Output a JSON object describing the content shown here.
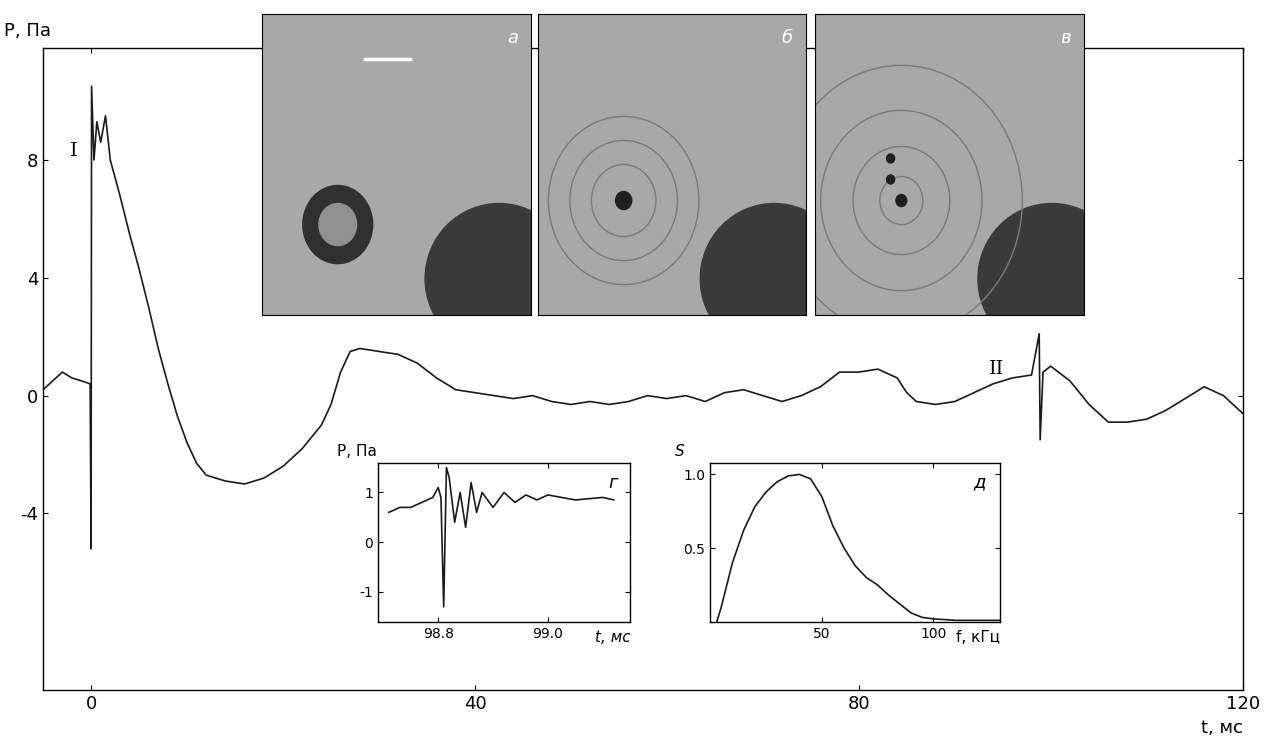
{
  "chart_data": [
    {
      "type": "line",
      "x_label": "t, мс",
      "y_label": "P, Па",
      "color": "#1a1a1a",
      "xlim": [
        -5,
        120
      ],
      "ylim": [
        -10,
        11.8
      ],
      "xticks": [
        0,
        40,
        80,
        120
      ],
      "yticks": [
        -4,
        0,
        4,
        8
      ],
      "annotations": [
        {
          "text": "I",
          "x": -1.8,
          "y": 8.3
        },
        {
          "text": "II",
          "x": 94.4,
          "y": 0.9
        }
      ],
      "panels": [
        "а",
        "б",
        "в"
      ],
      "x": [
        -5,
        -4,
        -3,
        -2,
        -1,
        -0.1,
        0,
        0.05,
        0.3,
        0.6,
        1,
        1.5,
        2,
        3,
        4,
        5,
        6,
        7,
        8,
        9,
        10,
        11,
        12,
        14,
        16,
        18,
        20,
        22,
        24,
        25,
        26,
        27,
        28,
        30,
        32,
        34,
        36,
        38,
        40,
        42,
        44,
        46,
        48,
        50,
        52,
        54,
        56,
        58,
        60,
        62,
        64,
        66,
        68,
        70,
        72,
        74,
        76,
        78,
        80,
        82,
        84,
        85,
        86,
        88,
        90,
        92,
        94,
        96,
        98,
        98.8,
        98.9,
        99.2,
        100,
        102,
        104,
        106,
        108,
        110,
        112,
        114,
        116,
        118,
        120
      ],
      "values": [
        0.2,
        0.5,
        0.8,
        0.6,
        0.5,
        0.4,
        -5.2,
        10.5,
        8.0,
        9.3,
        8.6,
        9.5,
        8.0,
        6.8,
        5.5,
        4.3,
        3.0,
        1.6,
        0.4,
        -0.7,
        -1.6,
        -2.3,
        -2.7,
        -2.9,
        -3.0,
        -2.8,
        -2.4,
        -1.8,
        -1.0,
        -0.3,
        0.8,
        1.5,
        1.6,
        1.5,
        1.4,
        1.1,
        0.6,
        0.2,
        0.1,
        0.0,
        -0.1,
        0.0,
        -0.2,
        -0.3,
        -0.2,
        -0.3,
        -0.2,
        0.0,
        -0.1,
        0.0,
        -0.2,
        0.1,
        0.2,
        0.0,
        -0.2,
        0.0,
        0.3,
        0.8,
        0.8,
        0.9,
        0.6,
        0.1,
        -0.2,
        -0.3,
        -0.2,
        0.1,
        0.4,
        0.6,
        0.7,
        2.1,
        -1.5,
        0.8,
        1.0,
        0.5,
        -0.3,
        -0.9,
        -0.9,
        -0.8,
        -0.5,
        -0.1,
        0.3,
        0.0,
        -0.6
      ]
    },
    {
      "type": "line",
      "panel": "г",
      "x_label": "t, мс",
      "y_label": "P, Па",
      "color": "#1a1a1a",
      "xlim": [
        98.69,
        99.15
      ],
      "ylim": [
        -1.6,
        1.6
      ],
      "xticks": [
        98.8,
        99.0
      ],
      "yticks": [
        -1,
        0,
        1
      ],
      "x": [
        98.71,
        98.73,
        98.75,
        98.77,
        98.79,
        98.8,
        98.805,
        98.81,
        98.815,
        98.82,
        98.83,
        98.84,
        98.85,
        98.86,
        98.87,
        98.88,
        98.9,
        98.92,
        98.94,
        98.96,
        98.98,
        99.0,
        99.05,
        99.1,
        99.12
      ],
      "values": [
        0.6,
        0.7,
        0.7,
        0.8,
        0.9,
        1.1,
        0.9,
        -1.3,
        1.5,
        1.3,
        0.4,
        1.0,
        0.3,
        1.2,
        0.6,
        1.0,
        0.7,
        1.0,
        0.8,
        0.95,
        0.85,
        0.95,
        0.85,
        0.9,
        0.85
      ]
    },
    {
      "type": "line",
      "panel": "д",
      "x_label": "f, кГц",
      "y_label": "S",
      "color": "#1a1a1a",
      "xlim": [
        0,
        130
      ],
      "ylim": [
        0,
        1.08
      ],
      "xticks": [
        50,
        100
      ],
      "yticks": [
        0.5,
        1.0
      ],
      "x": [
        3,
        5,
        10,
        15,
        20,
        25,
        30,
        35,
        40,
        45,
        50,
        55,
        60,
        65,
        70,
        75,
        80,
        85,
        90,
        95,
        100,
        110,
        120,
        130
      ],
      "values": [
        0,
        0.1,
        0.4,
        0.62,
        0.78,
        0.88,
        0.95,
        0.99,
        1.0,
        0.97,
        0.85,
        0.65,
        0.5,
        0.38,
        0.3,
        0.25,
        0.18,
        0.12,
        0.06,
        0.03,
        0.02,
        0.01,
        0.01,
        0.01
      ]
    }
  ]
}
